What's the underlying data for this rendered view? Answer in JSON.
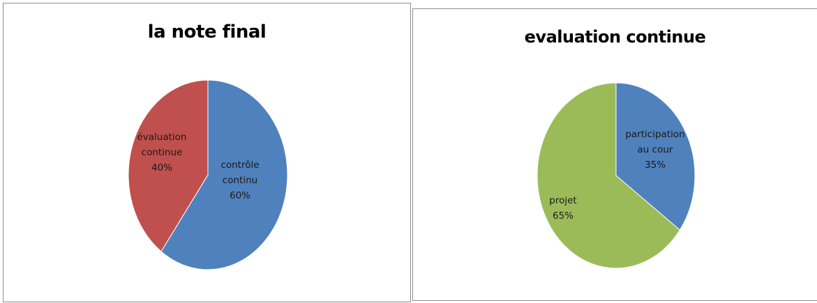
{
  "chart_data": [
    {
      "type": "pie",
      "title": "la note final",
      "slices": [
        {
          "label_lines": [
            "contrôle",
            "continu"
          ],
          "value": 60,
          "value_label": "60%",
          "color": "#4f81bd"
        },
        {
          "label_lines": [
            "évaluation",
            "continue"
          ],
          "value": 40,
          "value_label": "40%",
          "color": "#c0504d"
        }
      ],
      "legend": "none"
    },
    {
      "type": "pie",
      "title": "evaluation continue",
      "slices": [
        {
          "label_lines": [
            "participation",
            "au cour"
          ],
          "value": 35,
          "value_label": "35%",
          "color": "#4f81bd"
        },
        {
          "label_lines": [
            "projet"
          ],
          "value": 65,
          "value_label": "65%",
          "color": "#9bbb59"
        }
      ],
      "legend": "none"
    }
  ]
}
